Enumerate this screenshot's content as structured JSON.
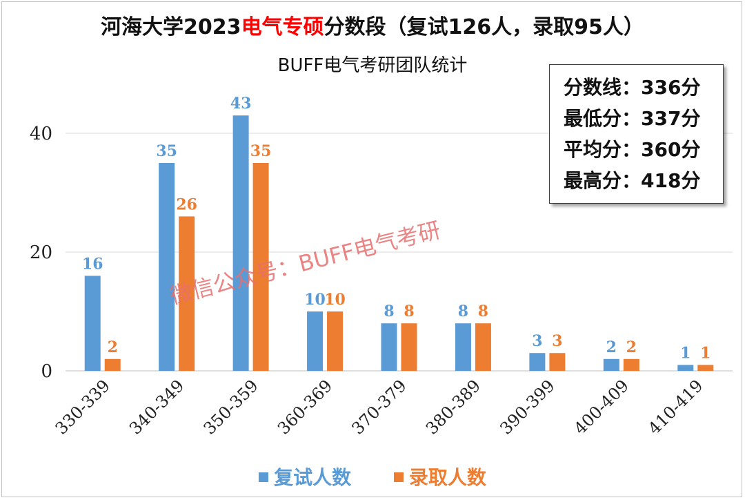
{
  "title": {
    "prefix": "河海大学2023",
    "highlight": "电气专硕",
    "suffix": "分数段（复试126人，录取95人）"
  },
  "subtitle": "BUFF电气考研团队统计",
  "watermark": "微信公众号：BUFF电气考研",
  "stats": [
    "分数线：336分",
    "最低分：337分",
    "平均分：360分",
    "最高分：418分"
  ],
  "colors": {
    "retest": "#5b9bd5",
    "admit": "#ed7d31",
    "title_highlight": "#ff0000",
    "grid": "#d9d9d9"
  },
  "chart_data": {
    "type": "bar",
    "title": "河海大学2023电气专硕分数段（复试126人，录取95人）",
    "subtitle": "BUFF电气考研团队统计",
    "categories": [
      "330-339",
      "340-349",
      "350-359",
      "360-369",
      "370-379",
      "380-389",
      "390-399",
      "400-409",
      "410-419"
    ],
    "series": [
      {
        "name": "复试人数",
        "values": [
          16,
          35,
          43,
          10,
          8,
          8,
          3,
          2,
          1
        ]
      },
      {
        "name": "录取人数",
        "values": [
          2,
          26,
          35,
          10,
          8,
          8,
          3,
          2,
          1
        ]
      }
    ],
    "yticks": [
      "0",
      "20",
      "40"
    ],
    "ylim": [
      0,
      45
    ],
    "xlabel": "",
    "ylabel": "",
    "grid": true,
    "legend": "bottom"
  }
}
